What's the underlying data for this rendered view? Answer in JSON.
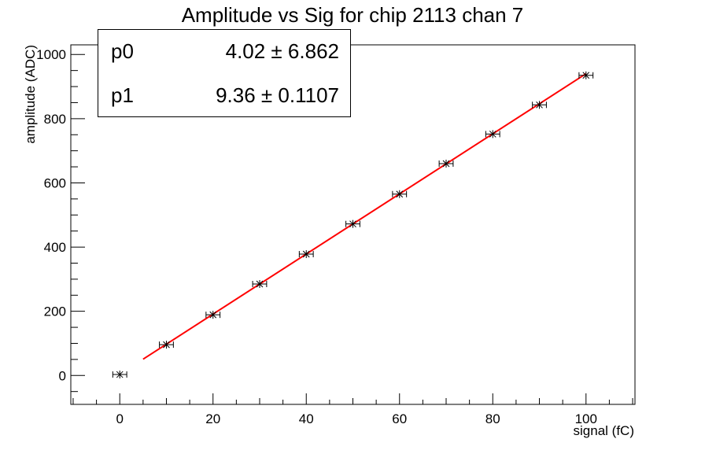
{
  "chart_data": {
    "type": "scatter",
    "title": "Amplitude vs Sig for chip 2113 chan 7",
    "xlabel": "signal (fC)",
    "ylabel": "amplitude (ADC)",
    "xlim": [
      -10.5,
      110.5
    ],
    "ylim": [
      -90,
      1030
    ],
    "x_ticks": [
      0,
      20,
      40,
      60,
      80,
      100
    ],
    "y_ticks": [
      0,
      200,
      400,
      600,
      800,
      1000
    ],
    "grid": false,
    "points": {
      "x": [
        0,
        10,
        20,
        30,
        40,
        50,
        60,
        70,
        80,
        90,
        100
      ],
      "y": [
        3,
        96,
        189,
        285,
        378,
        472,
        565,
        660,
        752,
        843,
        935
      ],
      "x_err": 1.5,
      "color": "#000000"
    },
    "fit": {
      "x_range": [
        5,
        100
      ],
      "p0": 4.02,
      "p1": 9.36,
      "color": "#ff0000"
    },
    "stats": [
      {
        "name": "p0",
        "value": "4.02 ± 6.862"
      },
      {
        "name": "p1",
        "value": "9.36 ± 0.1107"
      }
    ]
  }
}
